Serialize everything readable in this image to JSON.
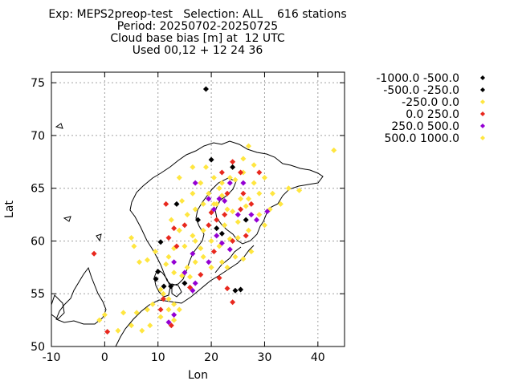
{
  "title_lines": [
    "Exp: MEPS2preop-test   Selection: ALL    616 stations",
    "Period: 20250702-20250725",
    "Cloud base bias [m] at  12 UTC",
    "Used 00,12 + 12 24 36"
  ],
  "chart_data": {
    "type": "scatter",
    "xlabel": "Lon",
    "ylabel": "Lat",
    "xlim": [
      -10,
      45
    ],
    "ylim": [
      50,
      76
    ],
    "xticks": [
      -10,
      0,
      10,
      20,
      30,
      40
    ],
    "yticks": [
      50,
      55,
      60,
      65,
      70,
      75
    ],
    "grid": true,
    "legend_position": "outside-right",
    "series": [
      {
        "name": "-1000.0 -500.0",
        "color": "#000000",
        "points": [
          [
            19.0,
            74.4
          ],
          [
            13.5,
            63.5
          ],
          [
            20.0,
            67.7
          ],
          [
            24.0,
            67.0
          ],
          [
            17.5,
            62.0
          ],
          [
            21.0,
            61.2
          ],
          [
            26.5,
            62.0
          ],
          [
            22.0,
            60.7
          ],
          [
            10.5,
            59.9
          ],
          [
            10.0,
            57.1
          ],
          [
            9.6,
            56.4
          ],
          [
            11.1,
            55.7
          ],
          [
            12.4,
            55.7
          ],
          [
            24.5,
            55.3
          ],
          [
            25.5,
            55.4
          ],
          [
            15.0,
            56.0
          ]
        ]
      },
      {
        "name": "-500.0 -250.0",
        "color": "#000000",
        "points": []
      },
      {
        "name": "-250.0 0.0",
        "color": "#ffe640",
        "points": [
          [
            43.0,
            68.6
          ],
          [
            27.0,
            69.0
          ],
          [
            28.0,
            67.2
          ],
          [
            26.0,
            67.8
          ],
          [
            24.5,
            65.8
          ],
          [
            22.0,
            64.3
          ],
          [
            18.0,
            65.5
          ],
          [
            16.5,
            64.5
          ],
          [
            17.0,
            63.0
          ],
          [
            15.5,
            62.5
          ],
          [
            14.5,
            63.8
          ],
          [
            12.5,
            62.0
          ],
          [
            14.0,
            61.0
          ],
          [
            16.5,
            60.5
          ],
          [
            18.0,
            59.3
          ],
          [
            20.0,
            60.0
          ],
          [
            21.5,
            59.5
          ],
          [
            23.5,
            60.2
          ],
          [
            25.0,
            60.3
          ],
          [
            27.0,
            61.0
          ],
          [
            29.0,
            62.5
          ],
          [
            30.0,
            61.5
          ],
          [
            31.0,
            63.0
          ],
          [
            33.0,
            63.5
          ],
          [
            34.5,
            65.0
          ],
          [
            36.5,
            64.8
          ],
          [
            25.5,
            64.0
          ],
          [
            23.0,
            63.0
          ],
          [
            21.0,
            63.5
          ],
          [
            19.5,
            64.5
          ],
          [
            12.0,
            58.5
          ],
          [
            11.5,
            57.8
          ],
          [
            13.0,
            57.0
          ],
          [
            14.5,
            56.7
          ],
          [
            16.0,
            56.6
          ],
          [
            15.5,
            57.5
          ],
          [
            17.0,
            58.0
          ],
          [
            18.5,
            58.5
          ],
          [
            20.0,
            57.5
          ],
          [
            22.0,
            58.0
          ],
          [
            23.0,
            57.5
          ],
          [
            24.5,
            58.5
          ],
          [
            26.0,
            58.3
          ],
          [
            27.5,
            59.0
          ],
          [
            10.5,
            55.4
          ],
          [
            11.0,
            55.0
          ],
          [
            12.0,
            54.5
          ],
          [
            13.0,
            54.0
          ],
          [
            12.0,
            53.5
          ],
          [
            9.0,
            54.0
          ],
          [
            8.0,
            53.5
          ],
          [
            6.0,
            53.2
          ],
          [
            5.0,
            52.0
          ],
          [
            3.5,
            53.2
          ],
          [
            2.5,
            51.5
          ],
          [
            0.0,
            53.0
          ],
          [
            -1.0,
            52.5
          ],
          [
            7.0,
            51.5
          ],
          [
            8.5,
            52.0
          ],
          [
            10.5,
            52.8
          ],
          [
            14.0,
            53.5
          ],
          [
            13.0,
            52.5
          ],
          [
            5.0,
            60.3
          ],
          [
            5.5,
            59.5
          ],
          [
            6.5,
            58.0
          ],
          [
            8.0,
            58.2
          ],
          [
            9.5,
            59.0
          ],
          [
            18.5,
            63.5
          ],
          [
            20.5,
            63.5
          ],
          [
            22.0,
            65.5
          ],
          [
            23.5,
            66.0
          ],
          [
            26.0,
            66.5
          ],
          [
            28.0,
            65.5
          ],
          [
            30.0,
            66.0
          ],
          [
            31.5,
            64.5
          ],
          [
            29.0,
            64.5
          ],
          [
            27.0,
            64.0
          ],
          [
            26.5,
            63.3
          ],
          [
            24.0,
            62.8
          ],
          [
            25.0,
            61.8
          ],
          [
            22.5,
            61.5
          ],
          [
            18.5,
            61.0
          ],
          [
            17.0,
            60.0
          ],
          [
            15.0,
            59.5
          ],
          [
            13.0,
            59.3
          ],
          [
            19.0,
            67.0
          ],
          [
            20.5,
            66.0
          ],
          [
            21.5,
            65.0
          ],
          [
            16.5,
            67.0
          ],
          [
            14.0,
            66.0
          ]
        ]
      },
      {
        "name": "0.0 250.0",
        "color": "#e8281e",
        "points": [
          [
            22.0,
            66.5
          ],
          [
            24.0,
            67.5
          ],
          [
            25.5,
            66.5
          ],
          [
            29.0,
            66.5
          ],
          [
            23.0,
            64.5
          ],
          [
            27.5,
            63.5
          ],
          [
            25.5,
            63.0
          ],
          [
            21.0,
            62.0
          ],
          [
            19.5,
            61.5
          ],
          [
            22.5,
            62.5
          ],
          [
            24.0,
            60.0
          ],
          [
            26.5,
            60.5
          ],
          [
            20.5,
            59.0
          ],
          [
            11.5,
            63.5
          ],
          [
            15.0,
            61.5
          ],
          [
            12.0,
            60.3
          ],
          [
            13.5,
            59.5
          ],
          [
            -2.0,
            58.8
          ],
          [
            0.5,
            51.4
          ],
          [
            24.0,
            54.2
          ],
          [
            23.0,
            55.5
          ],
          [
            21.5,
            56.5
          ],
          [
            18.0,
            56.8
          ],
          [
            16.0,
            55.6
          ],
          [
            11.0,
            54.5
          ],
          [
            10.5,
            53.5
          ],
          [
            12.5,
            52.0
          ],
          [
            13.0,
            61.2
          ],
          [
            20.0,
            62.7
          ],
          [
            26.0,
            64.5
          ]
        ]
      },
      {
        "name": "250.0 500.0",
        "color": "#9400d3",
        "points": [
          [
            17.0,
            65.5
          ],
          [
            19.5,
            64.0
          ],
          [
            20.5,
            63.0
          ],
          [
            22.5,
            63.8
          ],
          [
            23.5,
            65.5
          ],
          [
            26.0,
            65.5
          ],
          [
            27.5,
            62.5
          ],
          [
            28.5,
            62.0
          ],
          [
            30.5,
            62.8
          ],
          [
            21.0,
            60.5
          ],
          [
            22.0,
            59.8
          ],
          [
            23.5,
            59.2
          ],
          [
            19.5,
            58.0
          ],
          [
            16.5,
            58.8
          ],
          [
            13.0,
            58.0
          ],
          [
            15.0,
            57.0
          ],
          [
            17.0,
            56.0
          ],
          [
            16.5,
            55.3
          ],
          [
            13.0,
            53.0
          ],
          [
            12.0,
            52.3
          ],
          [
            21.5,
            64.0
          ],
          [
            25.0,
            62.5
          ]
        ]
      },
      {
        "name": "500.0 1000.0",
        "color": "#ffe640",
        "points": []
      }
    ]
  }
}
